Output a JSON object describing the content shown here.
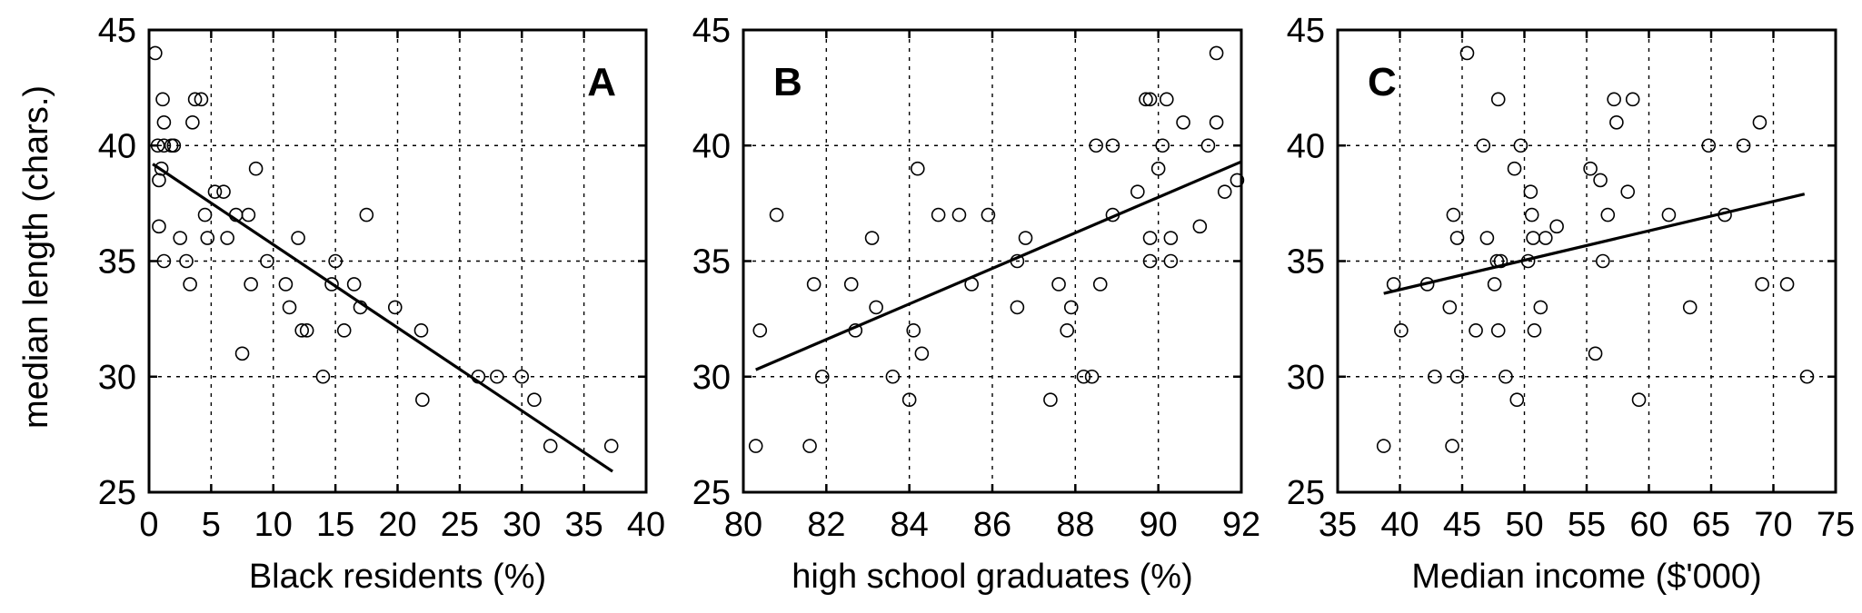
{
  "figure": {
    "ylabel": "median length (chars.)"
  },
  "chart_data": [
    {
      "type": "scatter",
      "label": "A",
      "xlabel": "Black residents (%)",
      "ylabel": "median length (chars.)",
      "xlim": [
        0,
        40
      ],
      "ylim": [
        25,
        45
      ],
      "xticks": [
        0,
        5,
        10,
        15,
        20,
        25,
        30,
        35,
        40
      ],
      "yticks": [
        25,
        30,
        35,
        40,
        45
      ],
      "grid": true,
      "points": [
        [
          0.5,
          44
        ],
        [
          0.7,
          40
        ],
        [
          1.2,
          40
        ],
        [
          1.8,
          40
        ],
        [
          1.1,
          42
        ],
        [
          1.2,
          41
        ],
        [
          1.0,
          39
        ],
        [
          0.8,
          38.5
        ],
        [
          0.8,
          36.5
        ],
        [
          1.2,
          35
        ],
        [
          2.0,
          40
        ],
        [
          2.5,
          36
        ],
        [
          3.0,
          35
        ],
        [
          3.3,
          34
        ],
        [
          3.5,
          41
        ],
        [
          3.7,
          42
        ],
        [
          4.2,
          42
        ],
        [
          4.5,
          37
        ],
        [
          4.7,
          36
        ],
        [
          5.3,
          38
        ],
        [
          6.0,
          38
        ],
        [
          6.3,
          36
        ],
        [
          7.0,
          37
        ],
        [
          7.5,
          31
        ],
        [
          8.0,
          37
        ],
        [
          8.2,
          34
        ],
        [
          8.6,
          39
        ],
        [
          9.5,
          35
        ],
        [
          11.0,
          34
        ],
        [
          11.3,
          33
        ],
        [
          12.0,
          36
        ],
        [
          12.3,
          32
        ],
        [
          12.7,
          32
        ],
        [
          14.0,
          30
        ],
        [
          14.7,
          34
        ],
        [
          15.0,
          35
        ],
        [
          15.7,
          32
        ],
        [
          16.5,
          34
        ],
        [
          17.0,
          33
        ],
        [
          17.5,
          37
        ],
        [
          19.8,
          33
        ],
        [
          21.9,
          32
        ],
        [
          22.0,
          29
        ],
        [
          26.5,
          30
        ],
        [
          28.0,
          30
        ],
        [
          30.0,
          30
        ],
        [
          31.0,
          29
        ],
        [
          32.3,
          27
        ],
        [
          37.2,
          27
        ]
      ],
      "fit_line": {
        "x": [
          0.3,
          37.3
        ],
        "y": [
          39.2,
          25.9
        ]
      }
    },
    {
      "type": "scatter",
      "label": "B",
      "xlabel": "high school graduates (%)",
      "ylabel": "",
      "xlim": [
        80,
        92
      ],
      "ylim": [
        25,
        45
      ],
      "xticks": [
        80,
        82,
        84,
        86,
        88,
        90,
        92
      ],
      "yticks": [
        25,
        30,
        35,
        40,
        45
      ],
      "grid": true,
      "points": [
        [
          80.3,
          27
        ],
        [
          80.4,
          32
        ],
        [
          80.8,
          37
        ],
        [
          81.6,
          27
        ],
        [
          81.7,
          34
        ],
        [
          81.9,
          30
        ],
        [
          82.6,
          34
        ],
        [
          82.7,
          32
        ],
        [
          83.1,
          36
        ],
        [
          83.2,
          33
        ],
        [
          83.6,
          30
        ],
        [
          84.0,
          29
        ],
        [
          84.1,
          32
        ],
        [
          84.2,
          39
        ],
        [
          84.3,
          31
        ],
        [
          84.7,
          37
        ],
        [
          85.2,
          37
        ],
        [
          85.5,
          34
        ],
        [
          85.9,
          37
        ],
        [
          86.6,
          35
        ],
        [
          86.6,
          33
        ],
        [
          86.8,
          36
        ],
        [
          87.4,
          29
        ],
        [
          87.6,
          34
        ],
        [
          87.8,
          32
        ],
        [
          87.9,
          33
        ],
        [
          88.2,
          30
        ],
        [
          88.4,
          30
        ],
        [
          88.5,
          40
        ],
        [
          88.6,
          34
        ],
        [
          88.9,
          40
        ],
        [
          88.9,
          37
        ],
        [
          89.5,
          38
        ],
        [
          89.7,
          42
        ],
        [
          89.8,
          42
        ],
        [
          89.8,
          35
        ],
        [
          89.8,
          36
        ],
        [
          90.0,
          39
        ],
        [
          90.1,
          40
        ],
        [
          90.2,
          42
        ],
        [
          90.3,
          35
        ],
        [
          90.3,
          36
        ],
        [
          90.6,
          41
        ],
        [
          91.0,
          36.5
        ],
        [
          91.2,
          40
        ],
        [
          91.4,
          41
        ],
        [
          91.4,
          44
        ],
        [
          91.6,
          38
        ],
        [
          91.9,
          38.5
        ]
      ],
      "fit_line": {
        "x": [
          80.3,
          92.0
        ],
        "y": [
          30.3,
          39.3
        ]
      }
    },
    {
      "type": "scatter",
      "label": "C",
      "xlabel": "Median income ($'000)",
      "ylabel": "",
      "xlim": [
        35,
        75
      ],
      "ylim": [
        25,
        45
      ],
      "xticks": [
        35,
        40,
        45,
        50,
        55,
        60,
        65,
        70,
        75
      ],
      "yticks": [
        25,
        30,
        35,
        40,
        45
      ],
      "grid": true,
      "points": [
        [
          38.7,
          27
        ],
        [
          39.5,
          34
        ],
        [
          40.1,
          32
        ],
        [
          42.2,
          34
        ],
        [
          42.8,
          30
        ],
        [
          44.0,
          33
        ],
        [
          44.2,
          27
        ],
        [
          44.3,
          37
        ],
        [
          44.6,
          36
        ],
        [
          44.6,
          30
        ],
        [
          45.4,
          44
        ],
        [
          46.1,
          32
        ],
        [
          46.7,
          40
        ],
        [
          47.0,
          36
        ],
        [
          47.6,
          34
        ],
        [
          47.8,
          35
        ],
        [
          47.9,
          42
        ],
        [
          47.9,
          32
        ],
        [
          48.1,
          35
        ],
        [
          48.5,
          30
        ],
        [
          49.2,
          39
        ],
        [
          49.4,
          29
        ],
        [
          49.7,
          40
        ],
        [
          50.3,
          35
        ],
        [
          50.5,
          38
        ],
        [
          50.6,
          37
        ],
        [
          50.7,
          36
        ],
        [
          50.8,
          32
        ],
        [
          51.3,
          33
        ],
        [
          51.7,
          36
        ],
        [
          52.6,
          36.5
        ],
        [
          55.3,
          39
        ],
        [
          55.7,
          31
        ],
        [
          56.1,
          38.5
        ],
        [
          56.3,
          35
        ],
        [
          56.7,
          37
        ],
        [
          57.2,
          42
        ],
        [
          57.4,
          41
        ],
        [
          58.3,
          38
        ],
        [
          58.7,
          42
        ],
        [
          59.2,
          29
        ],
        [
          61.6,
          37
        ],
        [
          63.3,
          33
        ],
        [
          64.8,
          40
        ],
        [
          66.1,
          37
        ],
        [
          67.6,
          40
        ],
        [
          68.9,
          41
        ],
        [
          69.1,
          34
        ],
        [
          71.1,
          34
        ],
        [
          72.7,
          30
        ]
      ],
      "fit_line": {
        "x": [
          38.7,
          72.5
        ],
        "y": [
          33.6,
          37.9
        ]
      }
    }
  ]
}
